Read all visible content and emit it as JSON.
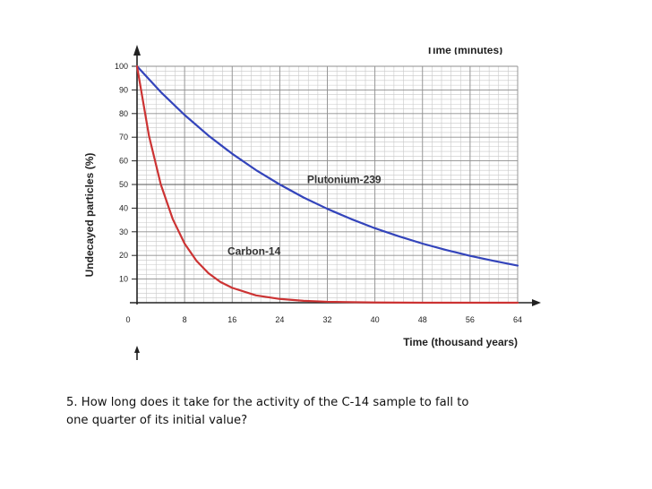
{
  "chart_data": {
    "type": "line",
    "ylabel": "Undecayed particles (%)",
    "xlabel": "Time (thousand years)",
    "top_axis_title": "Time (minutes)",
    "xlim": [
      0,
      64
    ],
    "ylim": [
      0,
      100
    ],
    "x_ticks": [
      0,
      8,
      16,
      24,
      32,
      40,
      48,
      56,
      64
    ],
    "y_ticks": [
      10,
      20,
      30,
      40,
      50,
      60,
      70,
      80,
      90,
      100
    ],
    "grid": true,
    "series": [
      {
        "name": "Plutonium-239",
        "color": "#3344bb",
        "x": [
          0,
          4,
          8,
          12,
          16,
          20,
          24,
          28,
          32,
          36,
          40,
          44,
          48,
          52,
          56,
          60,
          64
        ],
        "y": [
          100,
          89.1,
          79.4,
          70.7,
          63.0,
          56.1,
          50.0,
          44.5,
          39.7,
          35.4,
          31.5,
          28.1,
          25.0,
          22.3,
          19.8,
          17.7,
          15.7
        ]
      },
      {
        "name": "Carbon-14",
        "color": "#cc3333",
        "x": [
          0,
          2,
          4,
          6,
          8,
          10,
          12,
          14,
          16,
          20,
          24,
          28,
          32,
          40,
          48,
          56,
          64
        ],
        "y": [
          100,
          70.7,
          50.0,
          35.4,
          25.0,
          17.7,
          12.5,
          8.8,
          6.3,
          3.1,
          1.6,
          0.8,
          0.4,
          0.1,
          0,
          0,
          0
        ]
      }
    ],
    "annotations": [
      {
        "text": "Plutonium-239",
        "series": "Plutonium-239"
      },
      {
        "text": "Carbon-14",
        "series": "Carbon-14"
      }
    ]
  },
  "question": {
    "line1": "5.  How long does it take for the activity of the C-14 sample to fall to",
    "line2": "one quarter of its initial value?"
  }
}
